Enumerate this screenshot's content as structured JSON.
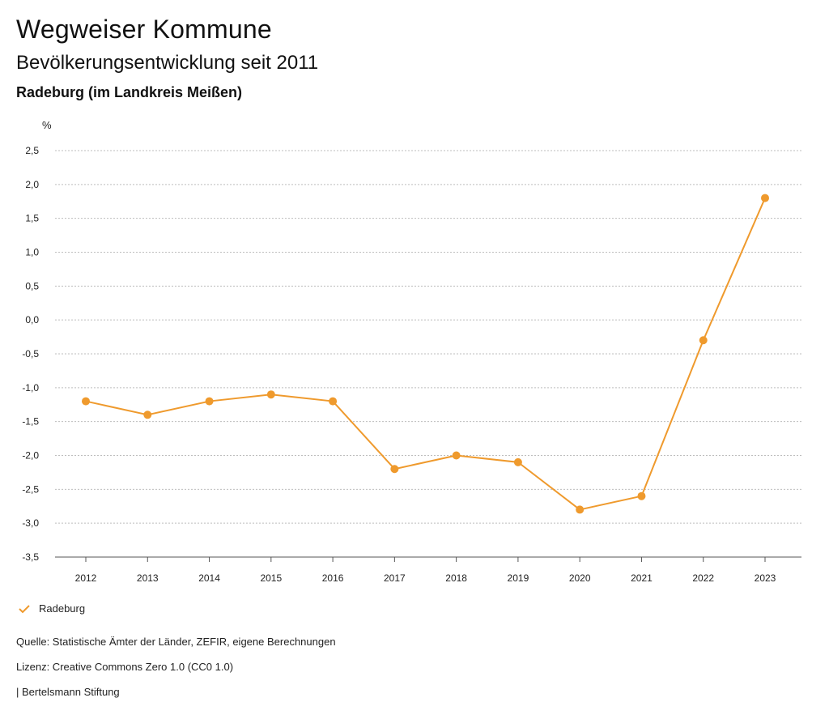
{
  "header": {
    "title": "Wegweiser Kommune",
    "subtitle": "Bevölkerungsentwicklung seit 2011",
    "region": "Radeburg (im Landkreis Meißen)"
  },
  "chart_data": {
    "type": "line",
    "ylabel": "%",
    "x": [
      "2012",
      "2013",
      "2014",
      "2015",
      "2016",
      "2017",
      "2018",
      "2019",
      "2020",
      "2021",
      "2022",
      "2023"
    ],
    "series": [
      {
        "name": "Radeburg",
        "color": "#ef9a2d",
        "values": [
          -1.2,
          -1.4,
          -1.2,
          -1.1,
          -1.2,
          -2.2,
          -2.0,
          -2.1,
          -2.8,
          -2.6,
          -0.3,
          1.8
        ]
      }
    ],
    "ylim": [
      -3.5,
      2.5
    ],
    "yticks": [
      2.5,
      2.0,
      1.5,
      1.0,
      0.5,
      0.0,
      -0.5,
      -1.0,
      -1.5,
      -2.0,
      -2.5,
      -3.0,
      -3.5
    ],
    "ytick_labels": [
      "2,5",
      "2,0",
      "1,5",
      "1,0",
      "0,5",
      "0,0",
      "-0,5",
      "-1,0",
      "-1,5",
      "-2,0",
      "-2,5",
      "-3,0",
      "-3,5"
    ],
    "grid": true
  },
  "legend": {
    "label": "Radeburg",
    "icon": "check-icon"
  },
  "footer": {
    "source": "Quelle: Statistische Ämter der Länder, ZEFIR, eigene Berechnungen",
    "license": "Lizenz: Creative Commons Zero 1.0 (CC0 1.0)",
    "publisher": "| Bertelsmann Stiftung"
  }
}
